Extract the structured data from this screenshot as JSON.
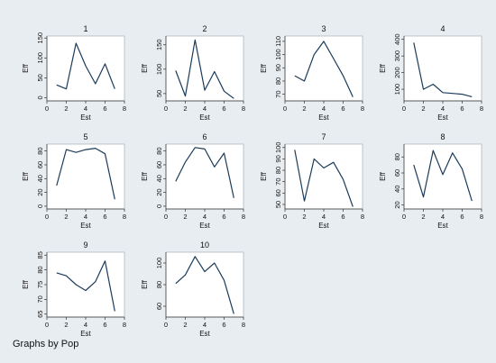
{
  "figure": {
    "background": "#e8edf1",
    "panel_background": "#ffffff",
    "line_color": "#1b3b5a",
    "footnote": "Graphs by Pop"
  },
  "chart_data": [
    {
      "type": "line",
      "title": "1",
      "xlabel": "Est",
      "ylabel": "Eff",
      "x": [
        1,
        2,
        3,
        4,
        5,
        6,
        7
      ],
      "y": [
        32,
        22,
        137,
        80,
        35,
        85,
        22
      ],
      "xticks": [
        0,
        2,
        4,
        6,
        8
      ],
      "yticks": [
        0,
        50,
        100,
        150
      ],
      "xlim": [
        0,
        8
      ],
      "ylim": [
        -8,
        155
      ],
      "ytick_labels": [
        "0",
        "50",
        "100",
        "150"
      ],
      "grid": false
    },
    {
      "type": "line",
      "title": "2",
      "xlabel": "Est",
      "ylabel": "Eff",
      "x": [
        1,
        2,
        3,
        4,
        5,
        6,
        7
      ],
      "y": [
        97,
        45,
        160,
        57,
        95,
        55,
        40
      ],
      "xticks": [
        0,
        2,
        4,
        6,
        8
      ],
      "yticks": [
        50,
        100,
        150
      ],
      "xlim": [
        0,
        8
      ],
      "ylim": [
        35,
        168
      ],
      "ytick_labels": [
        "50",
        "100",
        "150"
      ],
      "grid": false
    },
    {
      "type": "line",
      "title": "3",
      "xlabel": "Est",
      "ylabel": "Eff",
      "x": [
        1,
        2,
        3,
        4,
        5,
        6,
        7
      ],
      "y": [
        84,
        80,
        100,
        110,
        97,
        84,
        68
      ],
      "xticks": [
        0,
        2,
        4,
        6,
        8
      ],
      "yticks": [
        70,
        80,
        90,
        100,
        110
      ],
      "xlim": [
        0,
        8
      ],
      "ylim": [
        65,
        114
      ],
      "ytick_labels": [
        "70",
        "80",
        "90",
        "100",
        "110"
      ],
      "grid": false
    },
    {
      "type": "line",
      "title": "4",
      "xlabel": "Est",
      "ylabel": "Eff",
      "x": [
        1,
        2,
        3,
        4,
        5,
        6,
        7
      ],
      "y": [
        380,
        100,
        130,
        80,
        75,
        70,
        55
      ],
      "xticks": [
        0,
        2,
        4,
        6,
        8
      ],
      "yticks": [
        100,
        200,
        300,
        400
      ],
      "xlim": [
        0,
        8
      ],
      "ylim": [
        30,
        420
      ],
      "ytick_labels": [
        "100",
        "200",
        "300",
        "400"
      ],
      "grid": false
    },
    {
      "type": "line",
      "title": "5",
      "xlabel": "Est",
      "ylabel": "Eff",
      "x": [
        1,
        2,
        3,
        4,
        5,
        6,
        7
      ],
      "y": [
        30,
        82,
        78,
        82,
        84,
        76,
        10
      ],
      "xticks": [
        0,
        2,
        4,
        6,
        8
      ],
      "yticks": [
        0,
        20,
        40,
        60,
        80
      ],
      "xlim": [
        0,
        8
      ],
      "ylim": [
        -4,
        90
      ],
      "ytick_labels": [
        "0",
        "20",
        "40",
        "60",
        "80"
      ],
      "grid": false
    },
    {
      "type": "line",
      "title": "6",
      "xlabel": "Est",
      "ylabel": "Eff",
      "x": [
        1,
        2,
        3,
        4,
        5,
        6,
        7
      ],
      "y": [
        36,
        64,
        85,
        83,
        57,
        77,
        12
      ],
      "xticks": [
        0,
        2,
        4,
        6,
        8
      ],
      "yticks": [
        0,
        20,
        40,
        60,
        80
      ],
      "xlim": [
        0,
        8
      ],
      "ylim": [
        -4,
        90
      ],
      "ytick_labels": [
        "0",
        "20",
        "40",
        "60",
        "80"
      ],
      "grid": false
    },
    {
      "type": "line",
      "title": "7",
      "xlabel": "Est",
      "ylabel": "Eff",
      "x": [
        1,
        2,
        3,
        4,
        5,
        6,
        7
      ],
      "y": [
        98,
        53,
        90,
        82,
        87,
        72,
        48
      ],
      "xticks": [
        0,
        2,
        4,
        6,
        8
      ],
      "yticks": [
        50,
        60,
        70,
        80,
        90,
        100
      ],
      "xlim": [
        0,
        8
      ],
      "ylim": [
        46,
        103
      ],
      "ytick_labels": [
        "50",
        "60",
        "70",
        "80",
        "90",
        "100"
      ],
      "grid": false
    },
    {
      "type": "line",
      "title": "8",
      "xlabel": "Est",
      "ylabel": "Eff",
      "x": [
        1,
        2,
        3,
        4,
        5,
        6,
        7
      ],
      "y": [
        70,
        30,
        88,
        58,
        85,
        65,
        25
      ],
      "xticks": [
        0,
        2,
        4,
        6,
        8
      ],
      "yticks": [
        20,
        40,
        60,
        80
      ],
      "xlim": [
        0,
        8
      ],
      "ylim": [
        15,
        96
      ],
      "ytick_labels": [
        "20",
        "40",
        "60",
        "80"
      ],
      "grid": false
    },
    {
      "type": "line",
      "title": "9",
      "xlabel": "Est",
      "ylabel": "Eff",
      "x": [
        1,
        2,
        3,
        4,
        5,
        6,
        7
      ],
      "y": [
        79,
        78,
        75,
        73,
        76,
        83,
        66
      ],
      "xticks": [
        0,
        2,
        4,
        6,
        8
      ],
      "yticks": [
        65,
        70,
        75,
        80,
        85
      ],
      "xlim": [
        0,
        8
      ],
      "ylim": [
        64,
        86
      ],
      "ytick_labels": [
        "65",
        "70",
        "75",
        "80",
        "85"
      ],
      "grid": false
    },
    {
      "type": "line",
      "title": "10",
      "xlabel": "Est",
      "ylabel": "Eff",
      "x": [
        1,
        2,
        3,
        4,
        5,
        6,
        7
      ],
      "y": [
        81,
        89,
        106,
        92,
        100,
        84,
        53
      ],
      "xticks": [
        0,
        2,
        4,
        6,
        8
      ],
      "yticks": [
        60,
        80,
        100
      ],
      "xlim": [
        0,
        8
      ],
      "ylim": [
        50,
        110
      ],
      "ytick_labels": [
        "60",
        "80",
        "100"
      ],
      "grid": false
    }
  ]
}
